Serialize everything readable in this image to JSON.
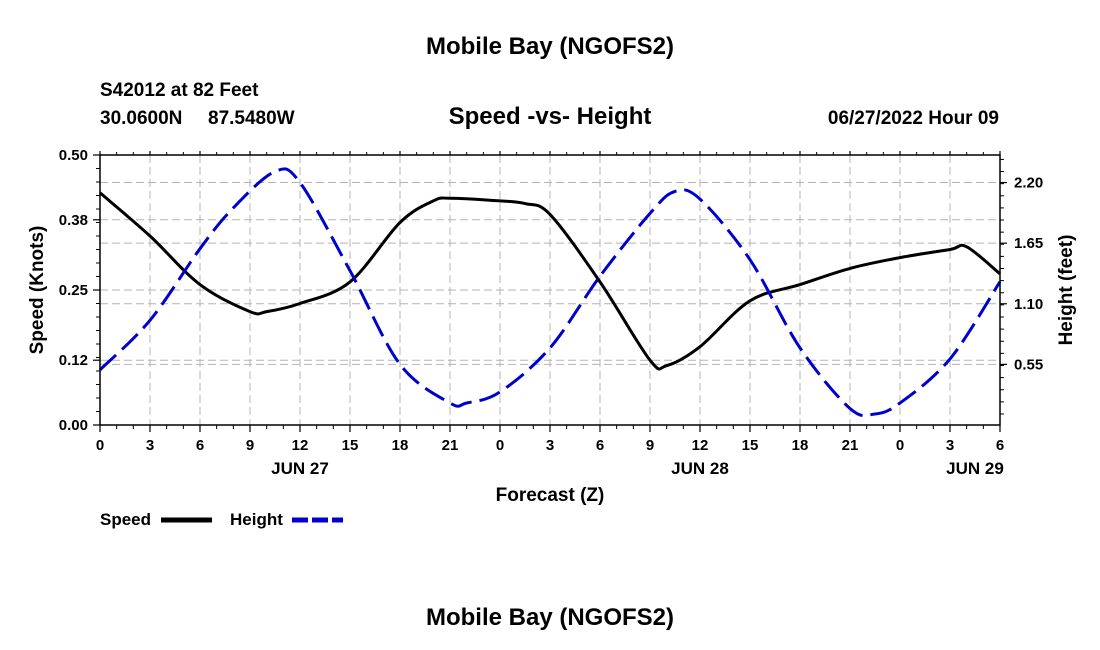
{
  "page": {
    "title": "Mobile Bay (NGOFS2)",
    "station_line": "S42012 at 82 Feet",
    "coords_lat": "30.0600N",
    "coords_lon": "87.5480W",
    "subtitle": "Speed -vs- Height",
    "datetime": "06/27/2022 Hour 09",
    "footer_title": "Mobile Bay (NGOFS2)"
  },
  "legend": {
    "speed_label": "Speed",
    "height_label": "Height"
  },
  "colors": {
    "speed": "#000000",
    "height": "#0000cc",
    "grid": "#b4b4b4"
  },
  "chart_data": {
    "type": "line",
    "xlabel": "Forecast (Z)",
    "ylabel": "Speed (Knots)",
    "y2label": "Height (feet)",
    "grid": true,
    "legend_position": "bottom-left",
    "xlim": [
      0,
      54
    ],
    "ylim": [
      0,
      0.5
    ],
    "y2lim": [
      0,
      2.45
    ],
    "x_tick_values": [
      0,
      3,
      6,
      9,
      12,
      15,
      18,
      21,
      24,
      27,
      30,
      33,
      36,
      39,
      42,
      45,
      48,
      51,
      54
    ],
    "x_tick_labels": [
      "0",
      "3",
      "6",
      "9",
      "12",
      "15",
      "18",
      "21",
      "0",
      "3",
      "6",
      "9",
      "12",
      "15",
      "18",
      "21",
      "0",
      "3",
      "6"
    ],
    "day_labels": [
      {
        "x": 12,
        "label": "JUN 27"
      },
      {
        "x": 36,
        "label": "JUN 28"
      },
      {
        "x": 52.5,
        "label": "JUN 29"
      }
    ],
    "y_ticks": [
      0.0,
      0.12,
      0.25,
      0.38,
      0.5
    ],
    "y_tick_labels": [
      "0.00",
      "0.12",
      "0.25",
      "0.38",
      "0.50"
    ],
    "y2_ticks": [
      0.55,
      1.1,
      1.65,
      2.2
    ],
    "y2_tick_labels": [
      "0.55",
      "1.10",
      "1.65",
      "2.20"
    ],
    "series": [
      {
        "name": "Speed",
        "axis": "left",
        "style": "solid",
        "x": [
          0,
          3,
          6,
          9,
          10,
          12,
          15,
          18,
          20,
          21,
          24,
          25.5,
          27,
          30,
          33,
          34,
          36,
          39,
          42,
          45,
          48,
          51,
          52,
          54
        ],
        "y": [
          0.43,
          0.35,
          0.26,
          0.21,
          0.21,
          0.225,
          0.265,
          0.375,
          0.415,
          0.42,
          0.415,
          0.41,
          0.39,
          0.265,
          0.12,
          0.11,
          0.145,
          0.23,
          0.26,
          0.29,
          0.31,
          0.325,
          0.33,
          0.28
        ]
      },
      {
        "name": "Height",
        "axis": "right",
        "style": "dashed",
        "x": [
          0,
          3,
          6,
          8,
          10.5,
          12,
          15,
          18,
          21,
          22,
          24,
          27,
          30,
          33,
          34.5,
          36,
          39,
          42,
          45,
          46.5,
          48,
          51,
          54
        ],
        "y": [
          0.5,
          0.95,
          1.6,
          1.97,
          2.3,
          2.2,
          1.4,
          0.55,
          0.2,
          0.2,
          0.3,
          0.7,
          1.35,
          1.92,
          2.12,
          2.05,
          1.5,
          0.7,
          0.15,
          0.1,
          0.2,
          0.6,
          1.3
        ]
      }
    ]
  }
}
